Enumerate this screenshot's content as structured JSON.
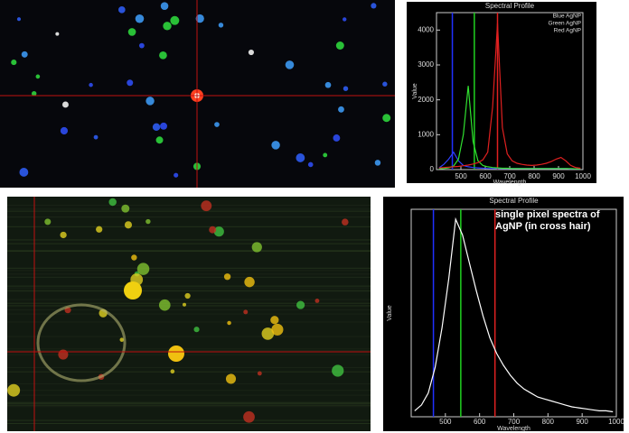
{
  "chart_data": [
    {
      "type": "line",
      "title": "Spectral Profile",
      "xlabel": "Wavelength",
      "ylabel": "Value",
      "x": [
        410,
        430,
        450,
        470,
        490,
        510,
        530,
        550,
        570,
        590,
        610,
        630,
        650,
        670,
        690,
        710,
        730,
        750,
        770,
        790,
        810,
        830,
        850,
        870,
        890,
        910,
        930,
        950,
        970,
        990
      ],
      "series": [
        {
          "name": "Blue AgNP",
          "color": "#3040ff",
          "values": [
            50,
            150,
            300,
            500,
            250,
            120,
            80,
            60,
            50,
            40,
            30,
            30,
            30,
            30,
            30,
            30,
            30,
            30,
            30,
            30,
            30,
            30,
            30,
            30,
            30,
            30,
            30,
            20,
            20,
            20
          ]
        },
        {
          "name": "Green AgNP",
          "color": "#30e030",
          "values": [
            20,
            30,
            50,
            100,
            300,
            1000,
            2400,
            800,
            250,
            120,
            80,
            60,
            50,
            40,
            40,
            30,
            30,
            30,
            30,
            30,
            30,
            30,
            30,
            30,
            30,
            30,
            30,
            30,
            20,
            20
          ]
        },
        {
          "name": "Red AgNP",
          "color": "#e02020",
          "values": [
            50,
            60,
            70,
            80,
            90,
            110,
            130,
            160,
            200,
            280,
            500,
            1800,
            4200,
            1200,
            450,
            250,
            180,
            150,
            130,
            120,
            130,
            150,
            180,
            230,
            300,
            350,
            250,
            120,
            60,
            40
          ]
        }
      ],
      "markers": [
        {
          "value": 465,
          "color": "#2030ff"
        },
        {
          "value": 555,
          "color": "#20d020"
        },
        {
          "value": 650,
          "color": "#e02020"
        }
      ],
      "xlim": [
        400,
        1000
      ],
      "xticks": [
        500,
        600,
        700,
        800,
        900,
        1000
      ],
      "ylim": [
        0,
        4500
      ],
      "yticks": [
        0,
        1000,
        2000,
        3000,
        4000
      ],
      "legend": "top-right"
    },
    {
      "type": "line",
      "title": "Spectral Profile",
      "xlabel": "Wavelength",
      "ylabel": "Value",
      "annotation": "single pixel spectra of AgNP (in cross hair)",
      "x": [
        410,
        430,
        450,
        470,
        490,
        510,
        530,
        550,
        570,
        590,
        610,
        630,
        650,
        670,
        690,
        710,
        730,
        750,
        770,
        790,
        810,
        830,
        850,
        870,
        890,
        910,
        930,
        950,
        970,
        990
      ],
      "series": [
        {
          "color": "#ffffff",
          "values": [
            3,
            6,
            12,
            25,
            45,
            70,
            100,
            92,
            78,
            64,
            51,
            40,
            32,
            26,
            21,
            17,
            14,
            12,
            10,
            9,
            8,
            7,
            6,
            5,
            4.5,
            4,
            3.5,
            3,
            3,
            2.5
          ]
        }
      ],
      "markers": [
        {
          "value": 465,
          "color": "#2030ff"
        },
        {
          "value": 545,
          "color": "#20d020"
        },
        {
          "value": 645,
          "color": "#e02020"
        }
      ],
      "xlim": [
        400,
        1000
      ],
      "xticks": [
        500,
        600,
        700,
        800,
        900,
        1000
      ],
      "ylim": [
        0,
        105
      ]
    }
  ]
}
